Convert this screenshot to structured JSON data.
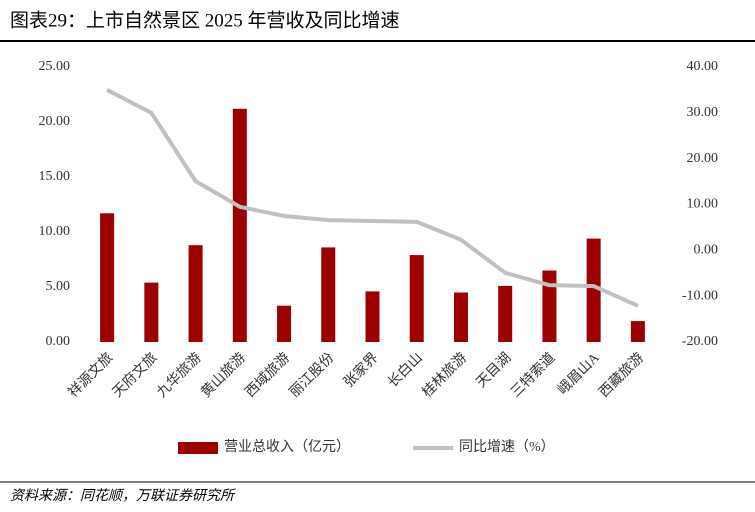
{
  "chart_data": {
    "type": "bar",
    "title": "图表29：上市自然景区 2025 年营收及同比增速",
    "source": "资料来源：同花顺，万联证券研究所",
    "categories": [
      "祥源文旅",
      "天府文旅",
      "九华旅游",
      "黄山旅游",
      "西域旅游",
      "丽江股份",
      "张家界",
      "长白山",
      "桂林旅游",
      "天目湖",
      "三特索道",
      "峨眉山A",
      "西藏旅游"
    ],
    "series": [
      {
        "name": "营业总收入（亿元）",
        "type": "bar",
        "axis": "y",
        "color": "#9c0000",
        "values": [
          11.7,
          5.4,
          8.8,
          21.2,
          3.3,
          8.6,
          4.6,
          7.9,
          4.5,
          5.1,
          6.5,
          9.4,
          1.9
        ]
      },
      {
        "name": "同比增速（%）",
        "type": "line",
        "axis": "y2",
        "color": "#c0c0c0",
        "values": [
          35.0,
          30.0,
          15.1,
          9.5,
          7.5,
          6.6,
          6.4,
          6.2,
          2.3,
          -4.9,
          -7.6,
          -7.8,
          -12.1
        ]
      }
    ],
    "ylim": [
      0,
      25
    ],
    "yticks": [
      {
        "value": 0,
        "label": "0.00"
      },
      {
        "value": 5,
        "label": "5.00"
      },
      {
        "value": 10,
        "label": "10.00"
      },
      {
        "value": 15,
        "label": "15.00"
      },
      {
        "value": 20,
        "label": "20.00"
      },
      {
        "value": 25,
        "label": "25.00"
      }
    ],
    "y2lim": [
      -20,
      40
    ],
    "y2ticks": [
      {
        "value": -20,
        "label": "-20.00"
      },
      {
        "value": -10,
        "label": "-10.00"
      },
      {
        "value": 0,
        "label": "0.00"
      },
      {
        "value": 10,
        "label": "10.00"
      },
      {
        "value": 20,
        "label": "20.00"
      },
      {
        "value": 30,
        "label": "30.00"
      },
      {
        "value": 40,
        "label": "40.00"
      }
    ],
    "grid": false,
    "legend": "bottom"
  }
}
